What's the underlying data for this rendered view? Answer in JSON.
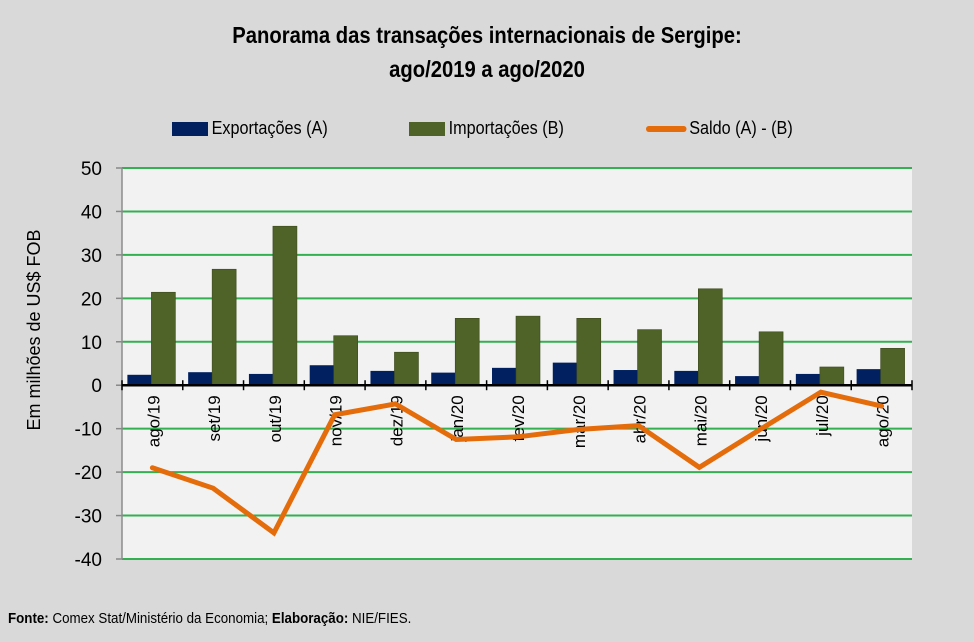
{
  "chart_data": {
    "type": "bar",
    "title_line1": "Panorama  das transações internacionais de Sergipe:",
    "title_line2": "ago/2019 a ago/2020",
    "ylabel": "Em milhões de US$ FOB",
    "xlabel": "",
    "ylim": [
      -40,
      50
    ],
    "yticks": [
      "50",
      "40",
      "30",
      "20",
      "10",
      "0",
      "-10",
      "-20",
      "-30",
      "-40"
    ],
    "ytick_values": [
      50,
      40,
      30,
      20,
      10,
      0,
      -10,
      -20,
      -30,
      -40
    ],
    "grid": true,
    "legend_position": "top",
    "categories": [
      "ago/19",
      "set/19",
      "out/19",
      "nov/19",
      "dez/19",
      "jan/20",
      "fev/20",
      "mar/20",
      "abr/20",
      "mai/20",
      "jun/20",
      "jul/20",
      "ago/20"
    ],
    "series": [
      {
        "name": "Exportações (A)",
        "type": "bar",
        "color": "#002060",
        "values": [
          2.4,
          3.0,
          2.6,
          4.6,
          3.3,
          2.9,
          4.0,
          5.2,
          3.5,
          3.3,
          2.1,
          2.6,
          3.7
        ]
      },
      {
        "name": "Importações (B)",
        "type": "bar",
        "color": "#4f6228",
        "values": [
          21.4,
          26.7,
          36.6,
          11.4,
          7.6,
          15.4,
          15.9,
          15.4,
          12.8,
          22.2,
          12.3,
          4.2,
          8.5
        ]
      },
      {
        "name": "Saldo (A) - (B)",
        "type": "line",
        "color": "#e46c0a",
        "values": [
          -19.0,
          -23.7,
          -34.0,
          -6.8,
          -4.3,
          -12.5,
          -11.9,
          -10.2,
          -9.3,
          -18.9,
          -10.2,
          -1.6,
          -4.8
        ]
      }
    ]
  },
  "colors": {
    "background": "#d9d9d9",
    "plot_background": "#f2f2f2",
    "gridline": "#33b050",
    "axis": "#000000"
  },
  "footer": {
    "source_label": "Fonte:",
    "source_text": " Comex Stat/Ministério da Economia; ",
    "credit_label": "Elaboração:",
    "credit_text": " NIE/FIES."
  }
}
